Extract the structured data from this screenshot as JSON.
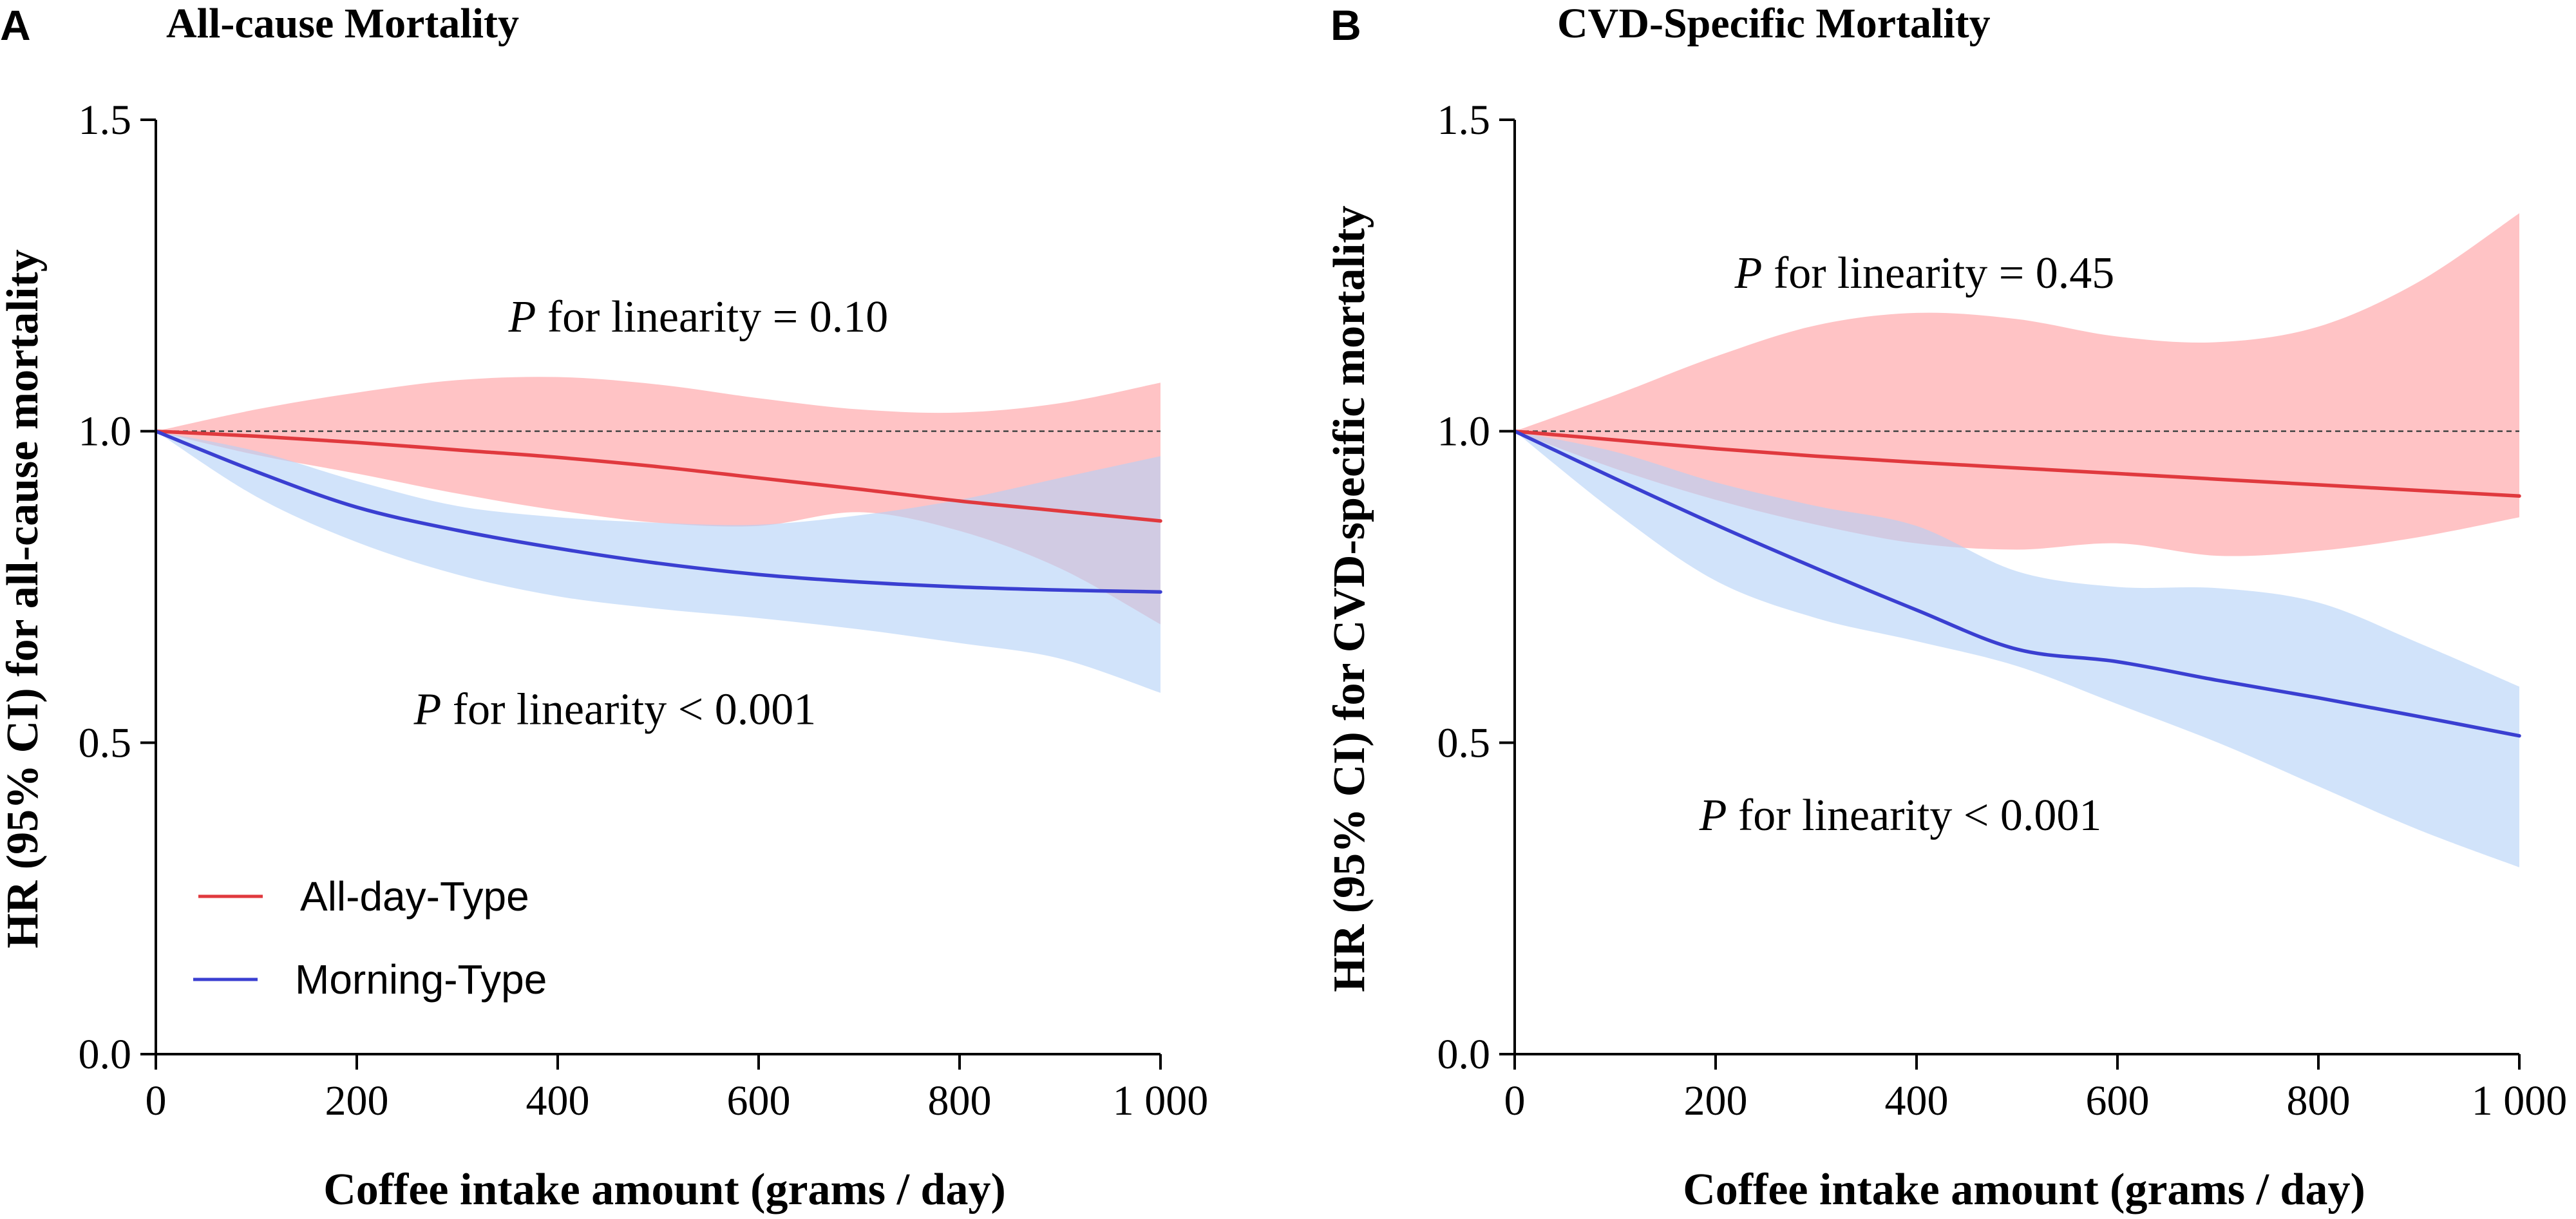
{
  "chart_data": [
    {
      "type": "line",
      "panel_label": "A",
      "title": "All-cause Mortality",
      "xlabel": "Coffee intake amount (grams / day)",
      "ylabel": "HR (95% CI) for all-cause mortality",
      "xlim": [
        0,
        1000
      ],
      "ylim": [
        0.0,
        1.5
      ],
      "xticks": [
        0,
        200,
        400,
        600,
        800,
        1000
      ],
      "xtick_labels": [
        "0",
        "200",
        "400",
        "600",
        "800",
        "1 000"
      ],
      "yticks": [
        0.0,
        0.5,
        1.0,
        1.5
      ],
      "ytick_labels": [
        "0.0",
        "0.5",
        "1.0",
        "1.5"
      ],
      "reference_line": 1.0,
      "x": [
        0,
        100,
        200,
        300,
        400,
        500,
        600,
        700,
        800,
        900,
        1000
      ],
      "series": [
        {
          "name": "All-day-Type",
          "values": [
            1.0,
            0.992,
            0.982,
            0.97,
            0.958,
            0.943,
            0.925,
            0.907,
            0.888,
            0.872,
            0.856
          ],
          "ci_lower": [
            1.0,
            0.962,
            0.932,
            0.9,
            0.873,
            0.853,
            0.848,
            0.87,
            0.84,
            0.78,
            0.69
          ],
          "ci_upper": [
            1.0,
            1.035,
            1.062,
            1.082,
            1.087,
            1.075,
            1.053,
            1.035,
            1.03,
            1.045,
            1.078
          ]
        },
        {
          "name": "Morning-Type",
          "values": [
            1.0,
            0.935,
            0.878,
            0.841,
            0.812,
            0.788,
            0.77,
            0.758,
            0.75,
            0.745,
            0.742
          ],
          "ci_lower": [
            1.0,
            0.895,
            0.822,
            0.77,
            0.735,
            0.715,
            0.7,
            0.682,
            0.66,
            0.635,
            0.58
          ],
          "ci_upper": [
            1.0,
            0.968,
            0.92,
            0.88,
            0.862,
            0.853,
            0.85,
            0.865,
            0.89,
            0.925,
            0.96
          ]
        }
      ],
      "annotations": [
        {
          "italic": "P",
          "text": " for linearity = 0.10",
          "series": "All-day-Type",
          "x": 540,
          "y": 1.16
        },
        {
          "italic": "P",
          "text": " for linearity < 0.001",
          "series": "Morning-Type",
          "x": 457,
          "y": 0.53
        }
      ],
      "legend": {
        "placement": "bottom-left",
        "entries": [
          "All-day-Type",
          "Morning-Type"
        ]
      }
    },
    {
      "type": "line",
      "panel_label": "B",
      "title": "CVD-Specific Mortality",
      "xlabel": "Coffee intake amount (grams / day)",
      "ylabel": "HR (95% CI) for CVD-specific mortality",
      "xlim": [
        0,
        1000
      ],
      "ylim": [
        0.0,
        1.5
      ],
      "xticks": [
        0,
        200,
        400,
        600,
        800,
        1000
      ],
      "xtick_labels": [
        "0",
        "200",
        "400",
        "600",
        "800",
        "1 000"
      ],
      "yticks": [
        0.0,
        0.5,
        1.0,
        1.5
      ],
      "ytick_labels": [
        "0.0",
        "0.5",
        "1.0",
        "1.5"
      ],
      "reference_line": 1.0,
      "x": [
        0,
        100,
        200,
        300,
        400,
        500,
        600,
        700,
        800,
        900,
        1000
      ],
      "series": [
        {
          "name": "All-day-Type",
          "values": [
            1.0,
            0.986,
            0.972,
            0.96,
            0.95,
            0.941,
            0.932,
            0.923,
            0.914,
            0.905,
            0.896
          ],
          "ci_lower": [
            1.0,
            0.94,
            0.89,
            0.85,
            0.82,
            0.81,
            0.82,
            0.8,
            0.808,
            0.83,
            0.862
          ],
          "ci_upper": [
            1.0,
            1.058,
            1.12,
            1.17,
            1.19,
            1.18,
            1.152,
            1.143,
            1.168,
            1.24,
            1.35
          ]
        },
        {
          "name": "Morning-Type",
          "values": [
            1.0,
            0.924,
            0.85,
            0.78,
            0.713,
            0.65,
            0.63,
            0.6,
            0.572,
            0.542,
            0.511
          ],
          "ci_lower": [
            1.0,
            0.87,
            0.76,
            0.7,
            0.663,
            0.623,
            0.562,
            0.5,
            0.43,
            0.36,
            0.3
          ],
          "ci_upper": [
            1.0,
            0.967,
            0.918,
            0.88,
            0.848,
            0.775,
            0.75,
            0.748,
            0.725,
            0.66,
            0.59
          ]
        }
      ],
      "annotations": [
        {
          "italic": "P",
          "text": " for linearity = 0.45",
          "series": "All-day-Type",
          "x": 408,
          "y": 1.23
        },
        {
          "italic": "P",
          "text": " for linearity < 0.001",
          "series": "Morning-Type",
          "x": 384,
          "y": 0.36
        }
      ]
    }
  ],
  "colors": {
    "all_day_line": "#e0393e",
    "all_day_band": "#ffb9bb",
    "morning_line": "#3a3fd1",
    "morning_band": "#b2d0f6"
  }
}
